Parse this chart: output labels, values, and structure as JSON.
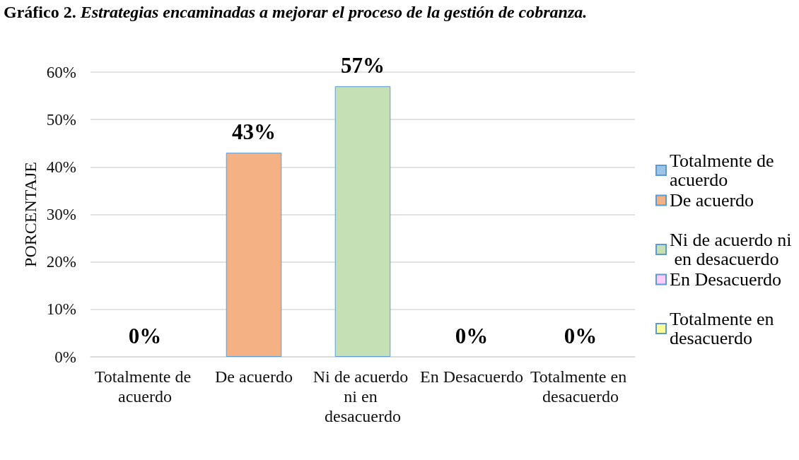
{
  "chart_data": {
    "type": "bar",
    "title": "Gráfico 2.",
    "subtitle": "Estrategias encaminadas a mejorar el proceso de la gestión de cobranza.",
    "ylabel": "PORCENTAJE",
    "categories": [
      "Totalmente de acuerdo",
      "De acuerdo",
      "Ni de acuerdo ni en desacuerdo",
      "En Desacuerdo",
      "Totalmente en desacuerdo"
    ],
    "series": [
      {
        "name": "Totalmente de acuerdo",
        "color": "#9dc3e6",
        "values": [
          0,
          null,
          null,
          null,
          null
        ],
        "value_labels": [
          "0%",
          null,
          null,
          null,
          null
        ]
      },
      {
        "name": "De acuerdo",
        "color": "#f4b183",
        "values": [
          null,
          43,
          null,
          null,
          null
        ],
        "value_labels": [
          null,
          "43%",
          null,
          null,
          null
        ]
      },
      {
        "name": "Ni de acuerdo ni en desacuerdo",
        "color": "#c5e0b4",
        "values": [
          null,
          null,
          57,
          null,
          null
        ],
        "value_labels": [
          null,
          null,
          "57%",
          null,
          null
        ]
      },
      {
        "name": "En Desacuerdo",
        "color": "#ffccff",
        "values": [
          null,
          null,
          null,
          0,
          null
        ],
        "value_labels": [
          null,
          null,
          null,
          "0%",
          null
        ]
      },
      {
        "name": "Totalmente en desacuerdo",
        "color": "#ffff99",
        "values": [
          null,
          null,
          null,
          null,
          0
        ],
        "value_labels": [
          null,
          null,
          null,
          null,
          "0%"
        ]
      }
    ],
    "ylim": [
      0,
      60
    ],
    "yticks": [
      {
        "value": 0,
        "label": "0%"
      },
      {
        "value": 10,
        "label": "10%"
      },
      {
        "value": 20,
        "label": "20%"
      },
      {
        "value": 30,
        "label": "30%"
      },
      {
        "value": 40,
        "label": "40%"
      },
      {
        "value": 50,
        "label": "50%"
      },
      {
        "value": 60,
        "label": "60%"
      }
    ],
    "grid": "y",
    "legend": "right"
  }
}
